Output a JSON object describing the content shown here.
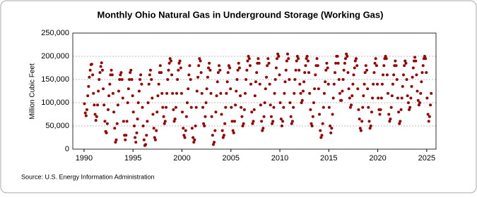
{
  "chart_data": {
    "type": "scatter",
    "title": "Monthly Ohio Natural Gas in Underground Storage (Working Gas)",
    "y_label": "Million Cubic Feet",
    "source": "Source: U.S. Energy Information Administration",
    "color": "#990000",
    "grid": true,
    "xlim": [
      1988.85,
      2025.95
    ],
    "xticks": [
      1990,
      1995,
      2000,
      2005,
      2010,
      2015,
      2020,
      2025
    ],
    "ylim": [
      0,
      250000
    ],
    "yticks": [
      0,
      {
        "value": 50000,
        "label": "50,000"
      },
      {
        "value": 100000,
        "label": "100,000"
      },
      {
        "value": 150000,
        "label": "150,000"
      },
      {
        "value": 200000,
        "label": "200,000"
      },
      {
        "value": 250000,
        "label": "250,000"
      }
    ],
    "x": [
      1990.04,
      1990.13,
      1990.21,
      1990.29,
      1990.38,
      1990.46,
      1990.54,
      1990.63,
      1990.71,
      1990.79,
      1990.88,
      1990.96,
      1991.04,
      1991.13,
      1991.21,
      1991.29,
      1991.38,
      1991.46,
      1991.54,
      1991.63,
      1991.71,
      1991.79,
      1991.88,
      1991.96,
      1992.04,
      1992.13,
      1992.21,
      1992.29,
      1992.38,
      1992.46,
      1992.54,
      1992.63,
      1992.71,
      1992.79,
      1992.88,
      1992.96,
      1993.04,
      1993.13,
      1993.21,
      1993.29,
      1993.38,
      1993.46,
      1993.54,
      1993.63,
      1993.71,
      1993.79,
      1993.88,
      1993.96,
      1994.04,
      1994.13,
      1994.21,
      1994.29,
      1994.38,
      1994.46,
      1994.54,
      1994.63,
      1994.71,
      1994.79,
      1994.88,
      1994.96,
      1995.04,
      1995.13,
      1995.21,
      1995.29,
      1995.38,
      1995.46,
      1995.54,
      1995.63,
      1995.71,
      1995.79,
      1995.88,
      1995.96,
      1996.04,
      1996.13,
      1996.21,
      1996.29,
      1996.38,
      1996.46,
      1996.54,
      1996.63,
      1996.71,
      1996.79,
      1996.88,
      1996.96,
      1997.04,
      1997.13,
      1997.21,
      1997.29,
      1997.38,
      1997.46,
      1997.54,
      1997.63,
      1997.71,
      1997.79,
      1997.88,
      1997.96,
      1998.04,
      1998.13,
      1998.21,
      1998.29,
      1998.38,
      1998.46,
      1998.54,
      1998.63,
      1998.71,
      1998.79,
      1998.88,
      1998.96,
      1999.04,
      1999.13,
      1999.21,
      1999.29,
      1999.38,
      1999.46,
      1999.54,
      1999.63,
      1999.71,
      1999.79,
      1999.88,
      1999.96,
      2000.04,
      2000.13,
      2000.21,
      2000.29,
      2000.38,
      2000.46,
      2000.54,
      2000.63,
      2000.71,
      2000.79,
      2000.88,
      2000.96,
      2001.04,
      2001.13,
      2001.21,
      2001.29,
      2001.38,
      2001.46,
      2001.54,
      2001.63,
      2001.71,
      2001.79,
      2001.88,
      2001.96,
      2002.04,
      2002.13,
      2002.21,
      2002.29,
      2002.38,
      2002.46,
      2002.54,
      2002.63,
      2002.71,
      2002.79,
      2002.88,
      2002.96,
      2003.04,
      2003.13,
      2003.21,
      2003.29,
      2003.38,
      2003.46,
      2003.54,
      2003.63,
      2003.71,
      2003.79,
      2003.88,
      2003.96,
      2004.04,
      2004.13,
      2004.21,
      2004.29,
      2004.38,
      2004.46,
      2004.54,
      2004.63,
      2004.71,
      2004.79,
      2004.88,
      2004.96,
      2005.04,
      2005.13,
      2005.21,
      2005.29,
      2005.38,
      2005.46,
      2005.54,
      2005.63,
      2005.71,
      2005.79,
      2005.88,
      2005.96,
      2006.04,
      2006.13,
      2006.21,
      2006.29,
      2006.38,
      2006.46,
      2006.54,
      2006.63,
      2006.71,
      2006.79,
      2006.88,
      2006.96,
      2007.04,
      2007.13,
      2007.21,
      2007.29,
      2007.38,
      2007.46,
      2007.54,
      2007.63,
      2007.71,
      2007.79,
      2007.88,
      2007.96,
      2008.04,
      2008.13,
      2008.21,
      2008.29,
      2008.38,
      2008.46,
      2008.54,
      2008.63,
      2008.71,
      2008.79,
      2008.88,
      2008.96,
      2009.04,
      2009.13,
      2009.21,
      2009.29,
      2009.38,
      2009.46,
      2009.54,
      2009.63,
      2009.71,
      2009.79,
      2009.88,
      2009.96,
      2010.04,
      2010.13,
      2010.21,
      2010.29,
      2010.38,
      2010.46,
      2010.54,
      2010.63,
      2010.71,
      2010.79,
      2010.88,
      2010.96,
      2011.04,
      2011.13,
      2011.21,
      2011.29,
      2011.38,
      2011.46,
      2011.54,
      2011.63,
      2011.71,
      2011.79,
      2011.88,
      2011.96,
      2012.04,
      2012.13,
      2012.21,
      2012.29,
      2012.38,
      2012.46,
      2012.54,
      2012.63,
      2012.71,
      2012.79,
      2012.88,
      2012.96,
      2013.04,
      2013.13,
      2013.21,
      2013.29,
      2013.38,
      2013.46,
      2013.54,
      2013.63,
      2013.71,
      2013.79,
      2013.88,
      2013.96,
      2014.04,
      2014.13,
      2014.21,
      2014.29,
      2014.38,
      2014.46,
      2014.54,
      2014.63,
      2014.71,
      2014.79,
      2014.88,
      2014.96,
      2015.04,
      2015.13,
      2015.21,
      2015.29,
      2015.38,
      2015.46,
      2015.54,
      2015.63,
      2015.71,
      2015.79,
      2015.88,
      2015.96,
      2016.04,
      2016.13,
      2016.21,
      2016.29,
      2016.38,
      2016.46,
      2016.54,
      2016.63,
      2016.71,
      2016.79,
      2016.88,
      2016.96,
      2017.04,
      2017.13,
      2017.21,
      2017.29,
      2017.38,
      2017.46,
      2017.54,
      2017.63,
      2017.71,
      2017.79,
      2017.88,
      2017.96,
      2018.04,
      2018.13,
      2018.21,
      2018.29,
      2018.38,
      2018.46,
      2018.54,
      2018.63,
      2018.71,
      2018.79,
      2018.88,
      2018.96,
      2019.04,
      2019.13,
      2019.21,
      2019.29,
      2019.38,
      2019.46,
      2019.54,
      2019.63,
      2019.71,
      2019.79,
      2019.88,
      2019.96,
      2020.04,
      2020.13,
      2020.21,
      2020.29,
      2020.38,
      2020.46,
      2020.54,
      2020.63,
      2020.71,
      2020.79,
      2020.88,
      2020.96,
      2021.04,
      2021.13,
      2021.21,
      2021.29,
      2021.38,
      2021.46,
      2021.54,
      2021.63,
      2021.71,
      2021.79,
      2021.88,
      2021.96,
      2022.04,
      2022.13,
      2022.21,
      2022.29,
      2022.38,
      2022.46,
      2022.54,
      2022.63,
      2022.71,
      2022.79,
      2022.88,
      2022.96,
      2023.04,
      2023.13,
      2023.21,
      2023.29,
      2023.38,
      2023.46,
      2023.54,
      2023.63,
      2023.71,
      2023.79,
      2023.88,
      2023.96,
      2024.04,
      2024.13,
      2024.21,
      2024.29,
      2024.38,
      2024.46,
      2024.54,
      2024.63,
      2024.71,
      2024.79,
      2024.88,
      2024.96,
      2025.04,
      2025.13,
      2025.21,
      2025.29,
      2025.38,
      2025.46
    ],
    "values": [
      98000,
      78000,
      72000,
      85000,
      115000,
      135000,
      155000,
      170000,
      182000,
      183000,
      160000,
      120000,
      95000,
      75000,
      62000,
      70000,
      95000,
      125000,
      150000,
      165000,
      178000,
      186000,
      170000,
      130000,
      95000,
      60000,
      38000,
      35000,
      55000,
      85000,
      115000,
      140000,
      160000,
      170000,
      160000,
      120000,
      80000,
      45000,
      15000,
      20000,
      55000,
      95000,
      125000,
      150000,
      160000,
      165000,
      150000,
      110000,
      60000,
      30000,
      20000,
      30000,
      60000,
      100000,
      130000,
      150000,
      165000,
      170000,
      150000,
      115000,
      80000,
      50000,
      25000,
      15000,
      35000,
      65000,
      100000,
      125000,
      150000,
      160000,
      140000,
      90000,
      50000,
      20000,
      8000,
      10000,
      30000,
      60000,
      100000,
      140000,
      160000,
      170000,
      150000,
      110000,
      75000,
      45000,
      25000,
      20000,
      40000,
      80000,
      115000,
      140000,
      165000,
      180000,
      165000,
      120000,
      90000,
      70000,
      55000,
      60000,
      90000,
      120000,
      150000,
      170000,
      185000,
      195000,
      190000,
      160000,
      120000,
      85000,
      60000,
      65000,
      90000,
      120000,
      150000,
      170000,
      185000,
      190000,
      175000,
      120000,
      80000,
      45000,
      30000,
      25000,
      40000,
      70000,
      100000,
      130000,
      160000,
      180000,
      150000,
      90000,
      45000,
      25000,
      15000,
      20000,
      50000,
      90000,
      125000,
      155000,
      180000,
      195000,
      190000,
      165000,
      120000,
      90000,
      55000,
      50000,
      70000,
      100000,
      130000,
      155000,
      175000,
      185000,
      170000,
      120000,
      70000,
      30000,
      10000,
      15000,
      40000,
      80000,
      115000,
      145000,
      165000,
      180000,
      170000,
      120000,
      75000,
      40000,
      25000,
      30000,
      55000,
      90000,
      120000,
      145000,
      165000,
      180000,
      175000,
      130000,
      90000,
      60000,
      40000,
      35000,
      60000,
      95000,
      125000,
      150000,
      170000,
      185000,
      175000,
      115000,
      90000,
      70000,
      50000,
      55000,
      85000,
      120000,
      150000,
      170000,
      190000,
      200000,
      195000,
      180000,
      140000,
      80000,
      55000,
      60000,
      85000,
      115000,
      145000,
      165000,
      185000,
      195000,
      185000,
      140000,
      95000,
      60000,
      40000,
      45000,
      70000,
      100000,
      130000,
      155000,
      180000,
      195000,
      185000,
      140000,
      95000,
      70000,
      55000,
      60000,
      90000,
      120000,
      150000,
      175000,
      195000,
      205000,
      200000,
      160000,
      100000,
      65000,
      50000,
      60000,
      90000,
      120000,
      145000,
      170000,
      190000,
      205000,
      195000,
      150000,
      100000,
      70000,
      55000,
      60000,
      90000,
      120000,
      150000,
      170000,
      190000,
      200000,
      195000,
      170000,
      140000,
      120000,
      100000,
      105000,
      125000,
      145000,
      165000,
      180000,
      195000,
      200000,
      190000,
      165000,
      120000,
      85000,
      55000,
      50000,
      70000,
      100000,
      130000,
      160000,
      180000,
      195000,
      180000,
      130000,
      75000,
      40000,
      25000,
      30000,
      55000,
      90000,
      120000,
      145000,
      170000,
      185000,
      175000,
      140000,
      90000,
      50000,
      35000,
      45000,
      75000,
      110000,
      140000,
      165000,
      185000,
      200000,
      200000,
      185000,
      150000,
      120000,
      105000,
      105000,
      125000,
      150000,
      170000,
      185000,
      195000,
      205000,
      200000,
      165000,
      130000,
      110000,
      90000,
      95000,
      115000,
      140000,
      160000,
      175000,
      190000,
      195000,
      180000,
      130000,
      85000,
      65000,
      45000,
      40000,
      60000,
      90000,
      115000,
      140000,
      165000,
      180000,
      170000,
      130000,
      90000,
      60000,
      45000,
      50000,
      80000,
      110000,
      140000,
      165000,
      185000,
      195000,
      180000,
      140000,
      110000,
      85000,
      75000,
      85000,
      110000,
      140000,
      160000,
      180000,
      195000,
      200000,
      195000,
      160000,
      120000,
      75000,
      60000,
      65000,
      90000,
      115000,
      140000,
      160000,
      180000,
      190000,
      180000,
      150000,
      110000,
      80000,
      55000,
      60000,
      85000,
      110000,
      135000,
      160000,
      180000,
      190000,
      185000,
      150000,
      115000,
      100000,
      85000,
      90000,
      110000,
      135000,
      155000,
      175000,
      190000,
      198000,
      190000,
      160000,
      125000,
      105000,
      95000,
      100000,
      120000,
      145000,
      165000,
      180000,
      195000,
      200000,
      195000,
      165000,
      110000,
      75000,
      60000,
      70000,
      95000,
      120000
    ]
  }
}
